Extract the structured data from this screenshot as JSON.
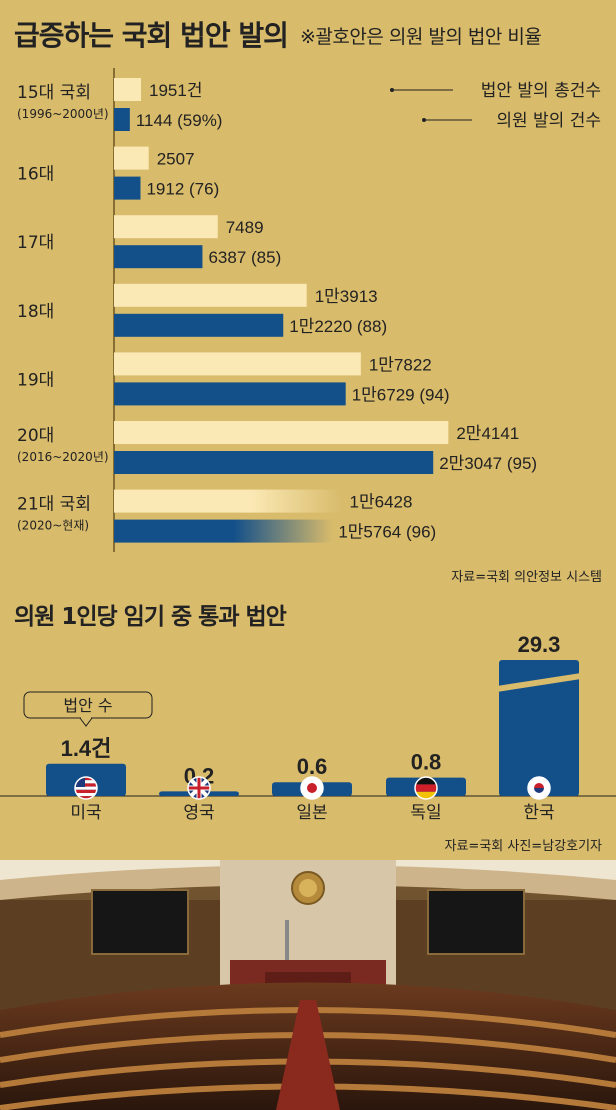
{
  "title": "급증하는 국회 법안 발의",
  "subtitle": "※괄호안은 의원 발의 법안 비율",
  "chart_data": [
    {
      "type": "bar",
      "orientation": "horizontal",
      "categories": [
        {
          "name": "15대 국회",
          "period": "(1996~2000년)"
        },
        {
          "name": "16대",
          "period": ""
        },
        {
          "name": "17대",
          "period": ""
        },
        {
          "name": "18대",
          "period": ""
        },
        {
          "name": "19대",
          "period": ""
        },
        {
          "name": "20대",
          "period": "(2016~2020년)"
        },
        {
          "name": "21대 국회",
          "period": "(2020~현재)"
        }
      ],
      "series": [
        {
          "name": "법안 발의 총건수",
          "values": [
            1951,
            2507,
            7489,
            13913,
            17822,
            24141,
            16428
          ],
          "labels": [
            "1951건",
            "2507",
            "7489",
            "1만3913",
            "1만7822",
            "2만4141",
            "1만6428"
          ],
          "color": "#fbe9b5"
        },
        {
          "name": "의원 발의 건수",
          "values": [
            1144,
            1912,
            6387,
            12220,
            16729,
            23047,
            15764
          ],
          "labels": [
            "1144 (59%)",
            "1912 (76)",
            "6387 (85)",
            "1만2220 (88)",
            "1만6729 (94)",
            "2만3047 (95)",
            "1만5764 (96)"
          ],
          "color": "#13508a"
        }
      ],
      "source": "자료=국회 의안정보 시스템"
    },
    {
      "type": "bar",
      "title": "의원 1인당 임기 중 통과 법안",
      "categories": [
        "미국",
        "영국",
        "일본",
        "독일",
        "한국"
      ],
      "values": [
        1.4,
        0.2,
        0.6,
        0.8,
        29.3
      ],
      "value_labels": [
        "1.4건",
        "0.2",
        "0.6",
        "0.8",
        "29.3"
      ],
      "flags": [
        "us-flag-icon",
        "uk-flag-icon",
        "japan-flag-icon",
        "germany-flag-icon",
        "korea-flag-icon"
      ],
      "callout": "법안 수",
      "bar_color": "#13508a",
      "axis_break": true,
      "source": "자료=국회  사진=남강호기자"
    }
  ],
  "colors": {
    "background": "#d8bb6b",
    "total": "#fbe9b5",
    "member": "#13508a"
  }
}
